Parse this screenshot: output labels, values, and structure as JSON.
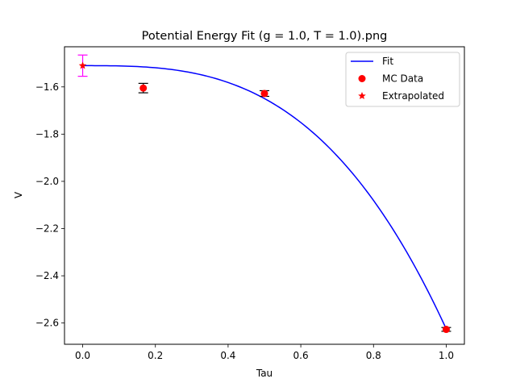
{
  "chart_data": {
    "type": "scatter",
    "title": "Potential Energy Fit (g = 1.0, T = 1.0).png",
    "xlabel": "Tau",
    "ylabel": "V",
    "xlim": [
      -0.05,
      1.05
    ],
    "ylim": [
      -2.69,
      -1.43
    ],
    "x_ticks": [
      0.0,
      0.2,
      0.4,
      0.6,
      0.8,
      1.0
    ],
    "x_tick_labels": [
      "0.0",
      "0.2",
      "0.4",
      "0.6",
      "0.8",
      "1.0"
    ],
    "y_ticks": [
      -1.6,
      -1.8,
      -2.0,
      -2.2,
      -2.4,
      -2.6
    ],
    "y_tick_labels": [
      "−1.6",
      "−1.8",
      "−2.0",
      "−2.2",
      "−2.4",
      "−2.6"
    ],
    "grid": false,
    "legend_position": "top-right",
    "series": [
      {
        "name": "Fit",
        "kind": "line",
        "color": "#0000ff",
        "model": "V = a + b * Tau^3",
        "a": -1.51,
        "b": -1.115,
        "x_range": [
          0.0,
          1.0
        ]
      },
      {
        "name": "MC Data",
        "kind": "scatter",
        "marker": "circle",
        "color": "#ff0000",
        "errorbar_color": "#000000",
        "points": [
          {
            "x": 0.1667,
            "y": -1.605,
            "err": 0.02
          },
          {
            "x": 0.5,
            "y": -1.628,
            "err": 0.012
          },
          {
            "x": 1.0,
            "y": -2.627,
            "err": 0.008
          }
        ]
      },
      {
        "name": "Extrapolated",
        "kind": "scatter",
        "marker": "star",
        "color": "#ff0000",
        "errorbar_color": "#ff00ff",
        "points": [
          {
            "x": 0.0,
            "y": -1.51,
            "err": 0.045
          }
        ]
      }
    ]
  }
}
